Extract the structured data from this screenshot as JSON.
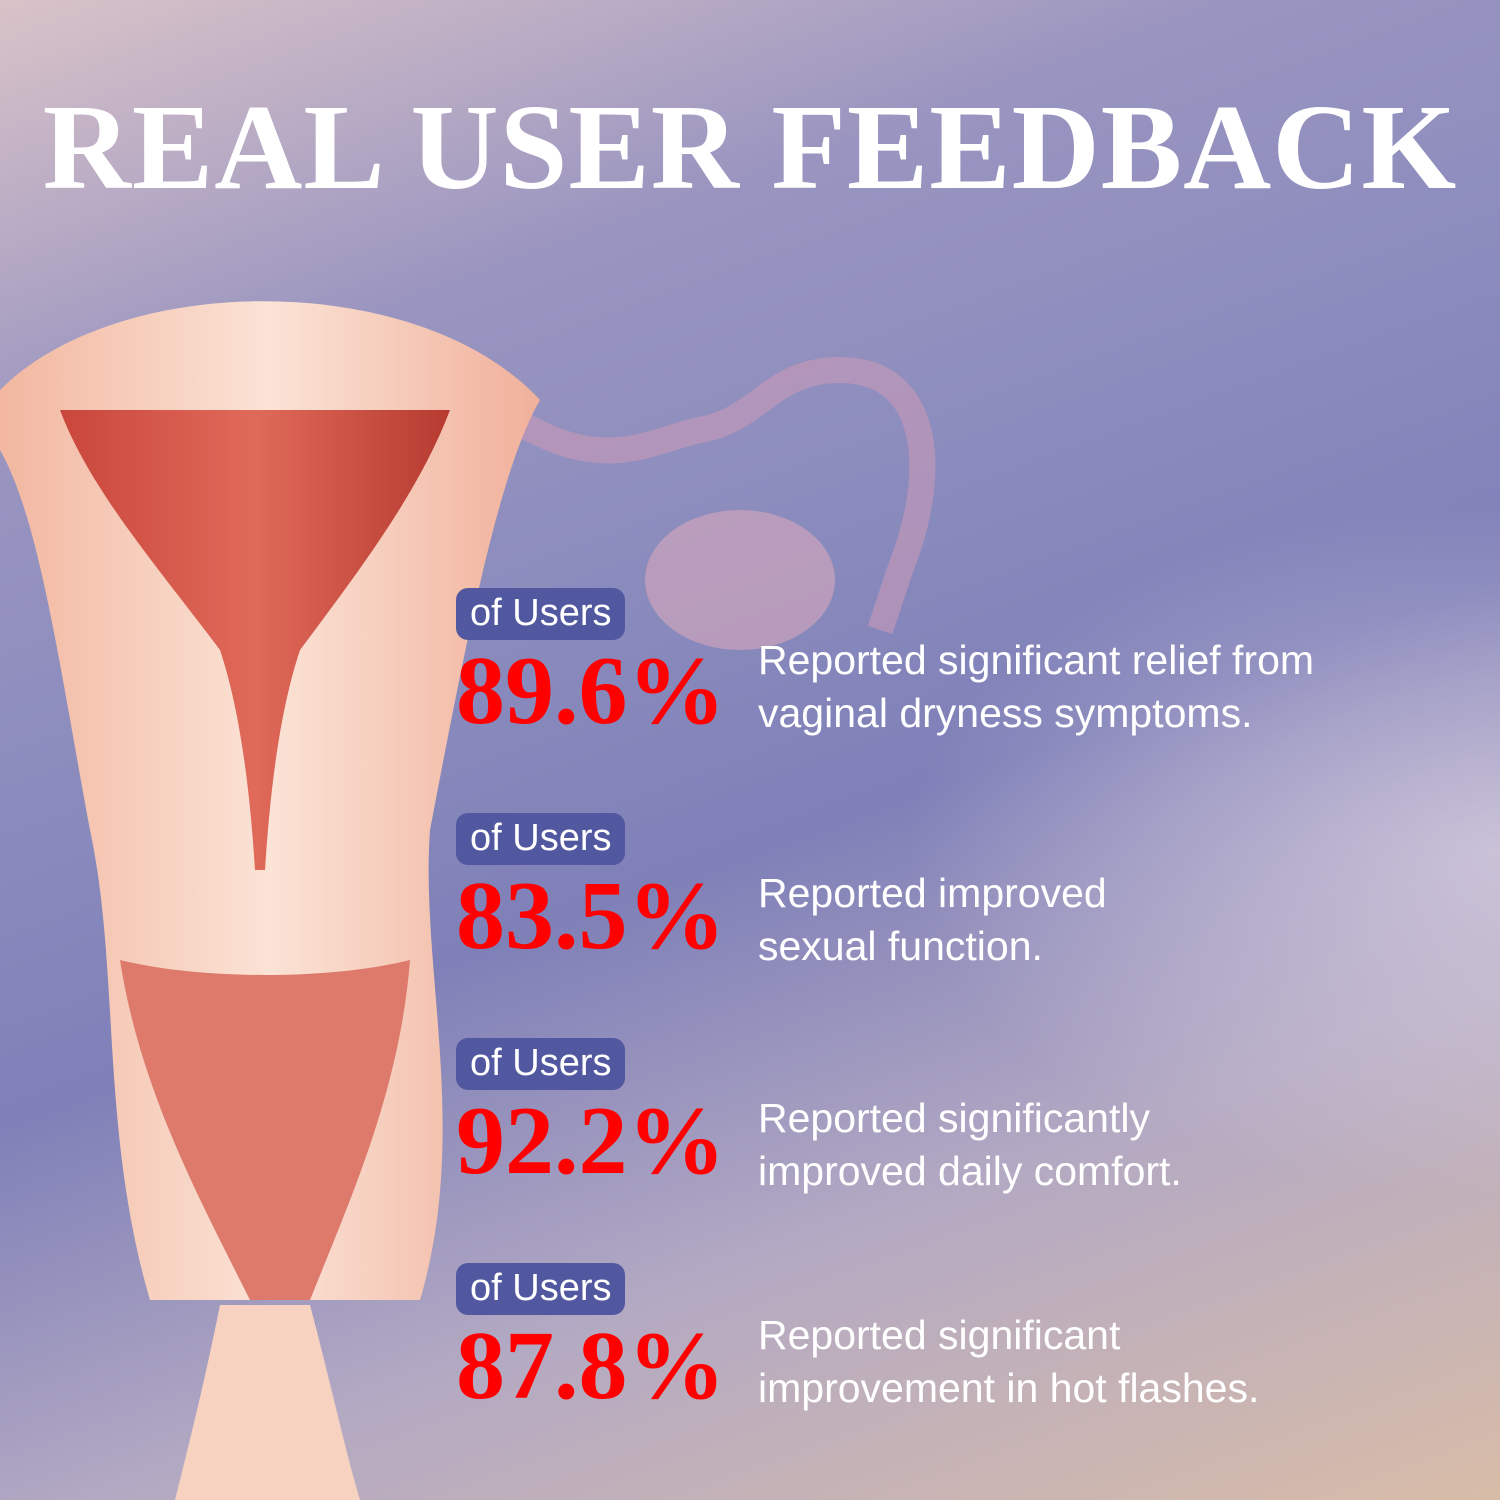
{
  "title": "REAL USER FEEDBACK",
  "colors": {
    "badge": "#5158a0",
    "percent": "#ff0000",
    "text": "#ffffff"
  },
  "illustration": "uterus-anatomy-illustration",
  "stats": [
    {
      "badge": "of Users",
      "percent": "89.6%",
      "line1": "Reported significant relief from",
      "line2": "vaginal dryness symptoms."
    },
    {
      "badge": "of Users",
      "percent": "83.5%",
      "line1": "Reported improved",
      "line2": "sexual function."
    },
    {
      "badge": "of Users",
      "percent": "92.2%",
      "line1": "Reported significantly",
      "line2": "improved daily comfort."
    },
    {
      "badge": "of Users",
      "percent": "87.8%",
      "line1": "Reported significant",
      "line2": "improvement in hot flashes."
    }
  ]
}
